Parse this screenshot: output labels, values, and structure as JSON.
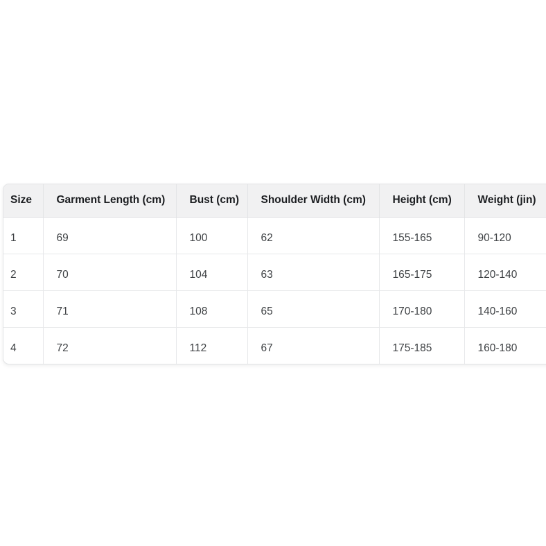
{
  "chart_data": {
    "type": "table",
    "columns": [
      "Size",
      "Garment Length (cm)",
      "Bust (cm)",
      "Shoulder Width (cm)",
      "Height (cm)",
      "Weight (jin)"
    ],
    "rows": [
      [
        "1",
        "69",
        "100",
        "62",
        "155-165",
        "90-120"
      ],
      [
        "2",
        "70",
        "104",
        "63",
        "165-175",
        "120-140"
      ],
      [
        "3",
        "71",
        "108",
        "65",
        "170-180",
        "140-160"
      ],
      [
        "4",
        "72",
        "112",
        "67",
        "175-185",
        "160-180"
      ]
    ],
    "layout_hints": {
      "header_position": "top",
      "grid": true,
      "right_edge_clipped": true
    }
  },
  "colors": {
    "page_background": "#ffffff",
    "card_background": "#ffffff",
    "header_background": "#f1f1f2",
    "grid_border": "#e7e8ea",
    "card_border": "#e3e4e6",
    "header_text": "#1c1e21",
    "body_text": "#3d4043"
  }
}
